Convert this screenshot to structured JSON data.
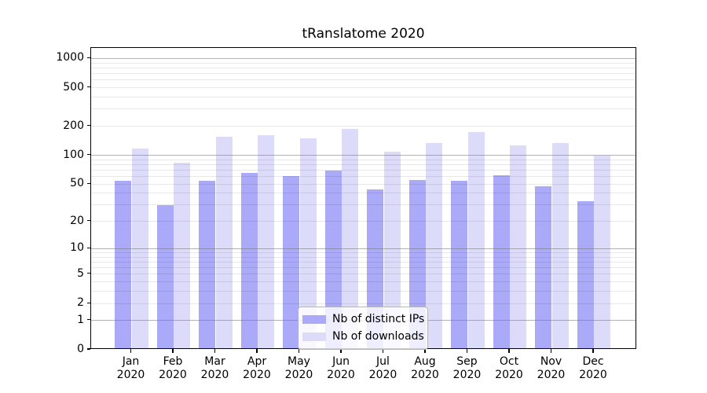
{
  "title": "tRanslatome 2020",
  "chart_data": {
    "type": "bar",
    "title": "tRanslatome 2020",
    "categories": [
      "Jan 2020",
      "Feb 2020",
      "Mar 2020",
      "Apr 2020",
      "May 2020",
      "Jun 2020",
      "Jul 2020",
      "Aug 2020",
      "Sep 2020",
      "Oct 2020",
      "Nov 2020",
      "Dec 2020"
    ],
    "months": [
      "Jan",
      "Feb",
      "Mar",
      "Apr",
      "May",
      "Jun",
      "Jul",
      "Aug",
      "Sep",
      "Oct",
      "Nov",
      "Dec"
    ],
    "year": "2020",
    "series": [
      {
        "name": "Nb of distinct IPs",
        "color": "#aaaaf8",
        "values": [
          52,
          29,
          52,
          63,
          58,
          67,
          42,
          53,
          52,
          60,
          46,
          32
        ]
      },
      {
        "name": "Nb of downloads",
        "color": "#dcdcfa",
        "values": [
          112,
          80,
          149,
          155,
          144,
          180,
          105,
          129,
          168,
          121,
          130,
          96
        ]
      }
    ],
    "xlabel": "",
    "ylabel": "",
    "yscale": "log1p",
    "yticks": [
      0,
      1,
      2,
      5,
      10,
      20,
      50,
      100,
      200,
      500,
      1000
    ],
    "ylim": [
      0,
      1270
    ],
    "grid": "on",
    "legend_position": "lower-center"
  }
}
